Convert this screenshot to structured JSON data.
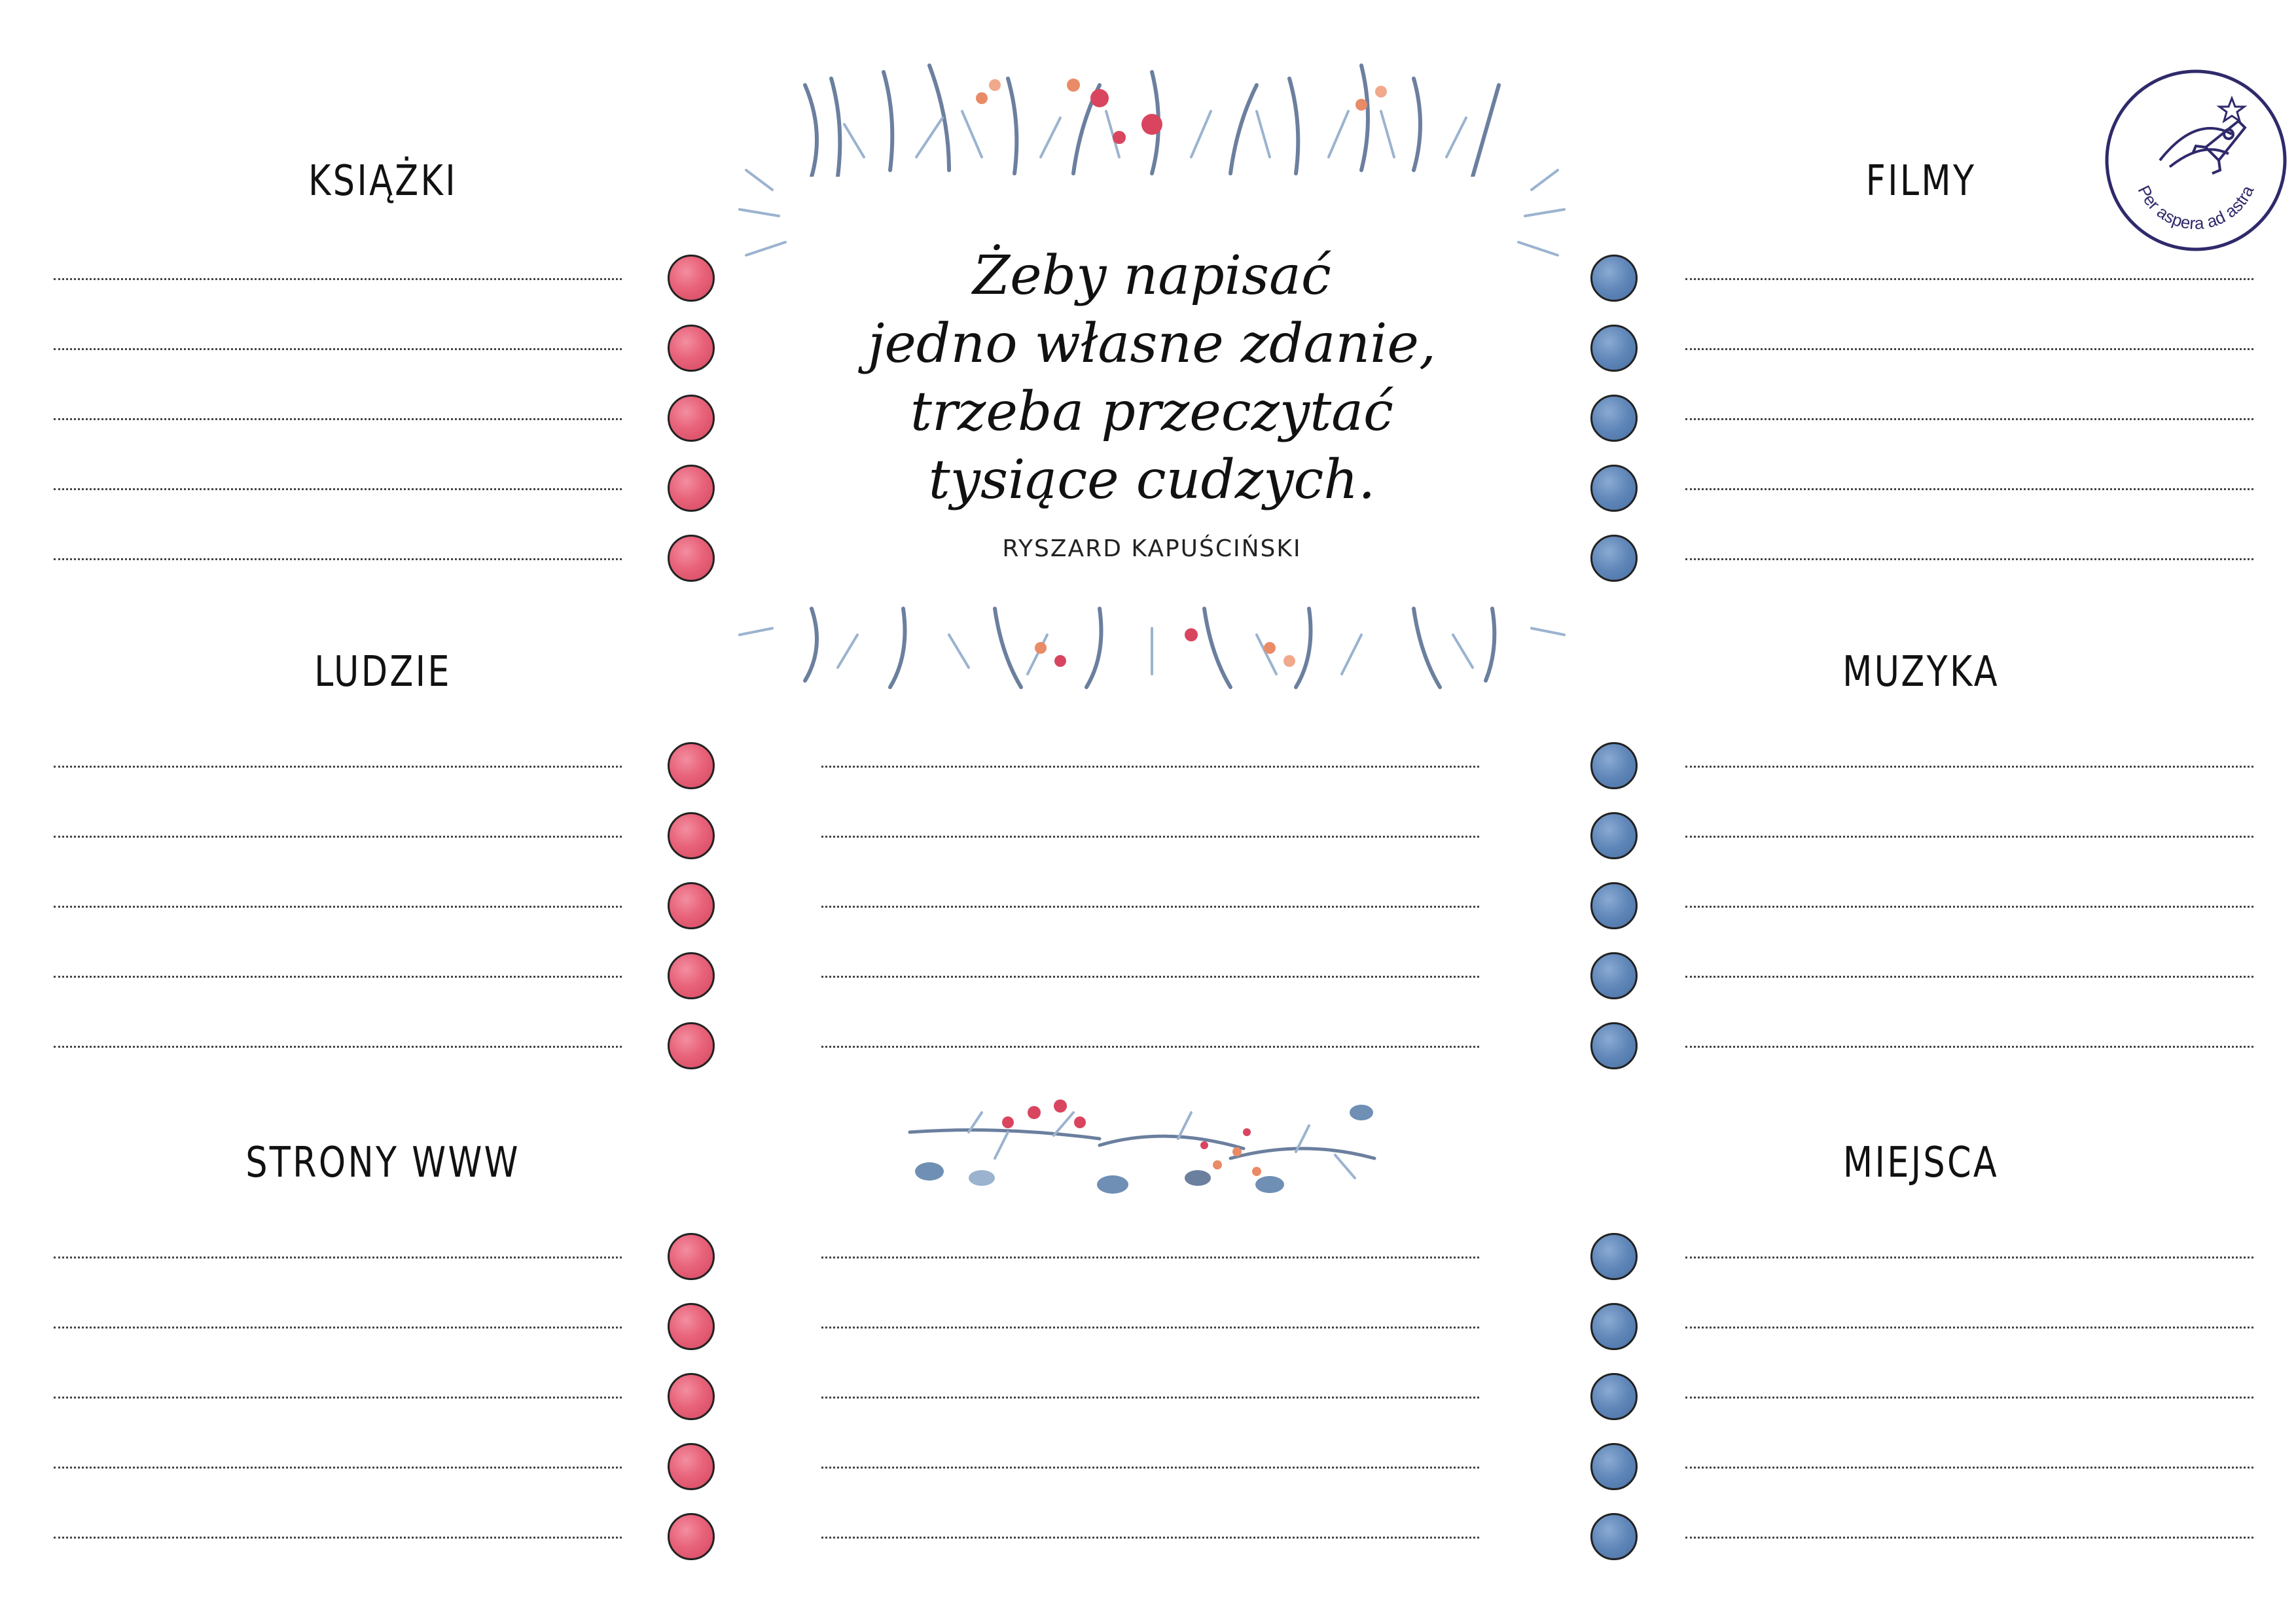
{
  "sections": {
    "ksiazki": {
      "title": "KSIĄŻKI"
    },
    "ludzie": {
      "title": "LUDZIE"
    },
    "strony": {
      "title": "STRONY WWW"
    },
    "filmy": {
      "title": "FILMY"
    },
    "muzyka": {
      "title": "MUZYKA"
    },
    "miejsca": {
      "title": "MIEJSCA"
    }
  },
  "quote": {
    "lines": [
      "Żeby napisać",
      "jedno własne zdanie,",
      "trzeba przeczytać",
      "tysiące cudzych."
    ],
    "author": "RYSZARD KAPUŚCIŃSKI"
  },
  "badge": {
    "text": "Per aspera ad astra"
  },
  "colors": {
    "left_dots": "#e8637a",
    "right_dots": "#5f86b8",
    "leaves": "#6f8fb5",
    "berries": "#d9455f"
  }
}
